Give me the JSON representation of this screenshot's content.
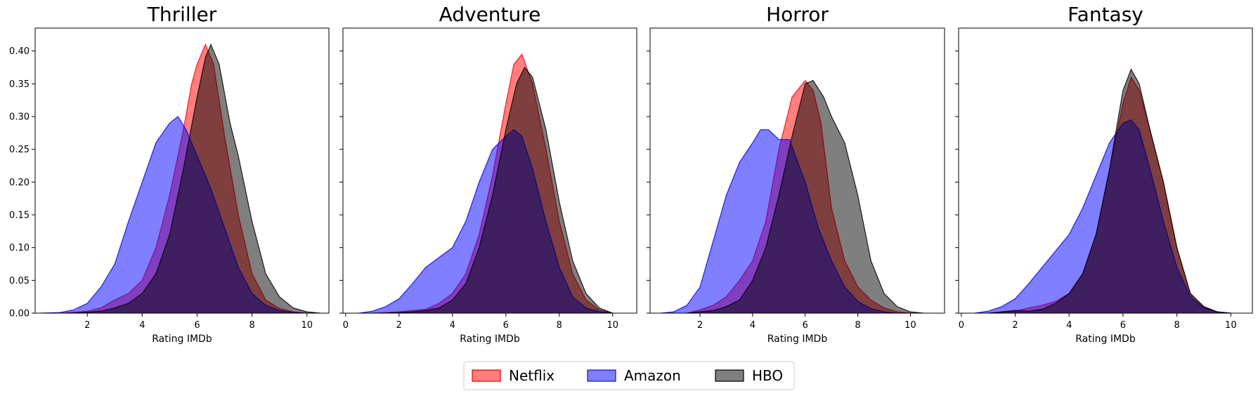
{
  "chart_data": [
    {
      "type": "area",
      "title": "Thriller",
      "xlabel": "Rating IMDb",
      "ylabel": "",
      "xlim": [
        0.1,
        10.8
      ],
      "ylim": [
        0,
        0.435
      ],
      "xticks": [
        2,
        4,
        6,
        8,
        10
      ],
      "yticks": [
        "0.00",
        "0.05",
        "0.10",
        "0.15",
        "0.20",
        "0.25",
        "0.30",
        "0.35",
        "0.40"
      ],
      "show_yticklabels": true,
      "series": [
        {
          "name": "Amazon",
          "x": [
            0.3,
            1.0,
            1.5,
            2.0,
            2.5,
            3.0,
            3.5,
            4.0,
            4.5,
            5.0,
            5.3,
            5.6,
            6.0,
            6.5,
            7.0,
            7.5,
            8.0,
            8.5,
            9.0,
            9.5,
            10.0
          ],
          "y": [
            0.0,
            0.001,
            0.005,
            0.015,
            0.04,
            0.075,
            0.14,
            0.2,
            0.26,
            0.29,
            0.3,
            0.28,
            0.24,
            0.19,
            0.13,
            0.07,
            0.03,
            0.012,
            0.004,
            0.001,
            0.0
          ]
        },
        {
          "name": "Netflix",
          "x": [
            1.0,
            2.0,
            2.5,
            3.0,
            3.5,
            4.0,
            4.5,
            5.0,
            5.5,
            5.8,
            6.0,
            6.3,
            6.6,
            7.0,
            7.5,
            8.0,
            8.5,
            9.0,
            9.5,
            10.0
          ],
          "y": [
            0.0,
            0.003,
            0.008,
            0.02,
            0.03,
            0.05,
            0.1,
            0.18,
            0.28,
            0.35,
            0.38,
            0.41,
            0.38,
            0.27,
            0.15,
            0.06,
            0.02,
            0.007,
            0.002,
            0.0
          ]
        },
        {
          "name": "HBO",
          "x": [
            1.5,
            2.5,
            3.0,
            3.5,
            4.0,
            4.5,
            5.0,
            5.5,
            6.0,
            6.3,
            6.5,
            6.8,
            7.2,
            7.5,
            8.0,
            8.5,
            9.0,
            9.5,
            10.0,
            10.5
          ],
          "y": [
            0.0,
            0.003,
            0.008,
            0.015,
            0.03,
            0.06,
            0.12,
            0.22,
            0.33,
            0.39,
            0.41,
            0.38,
            0.29,
            0.24,
            0.14,
            0.06,
            0.025,
            0.008,
            0.002,
            0.0
          ]
        }
      ]
    },
    {
      "type": "area",
      "title": "Adventure",
      "xlabel": "Rating IMDb",
      "ylabel": "",
      "xlim": [
        -0.1,
        10.9
      ],
      "ylim": [
        0,
        0.435
      ],
      "xticks": [
        0,
        2,
        4,
        6,
        8,
        10
      ],
      "yticks": [
        "0.00",
        "0.05",
        "0.10",
        "0.15",
        "0.20",
        "0.25",
        "0.30",
        "0.35",
        "0.40"
      ],
      "show_yticklabels": false,
      "series": [
        {
          "name": "Amazon",
          "x": [
            0.5,
            1.0,
            1.5,
            2.0,
            2.5,
            3.0,
            3.5,
            4.0,
            4.5,
            5.0,
            5.5,
            6.0,
            6.3,
            6.6,
            7.0,
            7.5,
            8.0,
            8.5,
            9.0,
            9.5,
            10.0
          ],
          "y": [
            0.0,
            0.003,
            0.01,
            0.022,
            0.045,
            0.07,
            0.085,
            0.1,
            0.14,
            0.2,
            0.25,
            0.27,
            0.28,
            0.27,
            0.22,
            0.14,
            0.07,
            0.025,
            0.008,
            0.002,
            0.0
          ]
        },
        {
          "name": "Netflix",
          "x": [
            1.0,
            2.0,
            2.5,
            3.0,
            3.5,
            4.0,
            4.5,
            5.0,
            5.5,
            6.0,
            6.3,
            6.6,
            7.0,
            7.5,
            8.0,
            8.5,
            9.0,
            9.5,
            10.0
          ],
          "y": [
            0.0,
            0.002,
            0.004,
            0.006,
            0.015,
            0.03,
            0.06,
            0.12,
            0.21,
            0.32,
            0.38,
            0.395,
            0.35,
            0.25,
            0.14,
            0.06,
            0.02,
            0.005,
            0.0
          ]
        },
        {
          "name": "HBO",
          "x": [
            1.5,
            2.5,
            3.0,
            3.5,
            4.0,
            4.5,
            5.0,
            5.5,
            6.0,
            6.4,
            6.7,
            7.0,
            7.5,
            8.0,
            8.5,
            9.0,
            9.5,
            10.0
          ],
          "y": [
            0.0,
            0.002,
            0.004,
            0.008,
            0.02,
            0.045,
            0.1,
            0.18,
            0.28,
            0.35,
            0.375,
            0.36,
            0.28,
            0.17,
            0.08,
            0.03,
            0.008,
            0.0
          ]
        }
      ]
    },
    {
      "type": "area",
      "title": "Horror",
      "xlabel": "Rating IMDb",
      "ylabel": "",
      "xlim": [
        0.1,
        11.3
      ],
      "ylim": [
        0,
        0.435
      ],
      "xticks": [
        2,
        4,
        6,
        8,
        10
      ],
      "yticks": [
        "0.00",
        "0.05",
        "0.10",
        "0.15",
        "0.20",
        "0.25",
        "0.30",
        "0.35",
        "0.40"
      ],
      "show_yticklabels": false,
      "series": [
        {
          "name": "Amazon",
          "x": [
            0.5,
            1.0,
            1.5,
            2.0,
            2.5,
            3.0,
            3.5,
            4.0,
            4.3,
            4.6,
            5.0,
            5.4,
            6.0,
            6.5,
            7.0,
            7.5,
            8.0,
            8.5,
            9.0,
            9.5,
            10.0
          ],
          "y": [
            0.0,
            0.002,
            0.012,
            0.04,
            0.11,
            0.18,
            0.23,
            0.26,
            0.28,
            0.28,
            0.265,
            0.265,
            0.2,
            0.13,
            0.08,
            0.04,
            0.018,
            0.007,
            0.002,
            0.0,
            0.0
          ]
        },
        {
          "name": "Netflix",
          "x": [
            1.5,
            2.0,
            2.5,
            3.0,
            3.5,
            4.0,
            4.5,
            5.0,
            5.5,
            6.0,
            6.3,
            6.6,
            7.0,
            7.5,
            8.0,
            8.5,
            9.0,
            9.5,
            10.0
          ],
          "y": [
            0.0,
            0.005,
            0.012,
            0.025,
            0.05,
            0.08,
            0.14,
            0.25,
            0.33,
            0.355,
            0.34,
            0.29,
            0.16,
            0.08,
            0.04,
            0.02,
            0.008,
            0.002,
            0.0
          ]
        },
        {
          "name": "HBO",
          "x": [
            1.5,
            2.5,
            3.0,
            3.5,
            4.0,
            4.5,
            5.0,
            5.5,
            6.0,
            6.3,
            6.7,
            7.0,
            7.5,
            8.0,
            8.5,
            9.0,
            9.5,
            10.0,
            10.5
          ],
          "y": [
            0.0,
            0.004,
            0.01,
            0.02,
            0.05,
            0.1,
            0.18,
            0.27,
            0.35,
            0.355,
            0.33,
            0.3,
            0.26,
            0.18,
            0.08,
            0.03,
            0.01,
            0.002,
            0.0
          ]
        }
      ]
    },
    {
      "type": "area",
      "title": "Fantasy",
      "xlabel": "Rating IMDb",
      "ylabel": "",
      "xlim": [
        -0.1,
        10.8
      ],
      "ylim": [
        0,
        0.435
      ],
      "xticks": [
        0,
        2,
        4,
        6,
        8,
        10
      ],
      "yticks": [
        "0.00",
        "0.05",
        "0.10",
        "0.15",
        "0.20",
        "0.25",
        "0.30",
        "0.35",
        "0.40"
      ],
      "show_yticklabels": false,
      "series": [
        {
          "name": "Amazon",
          "x": [
            0.5,
            1.0,
            1.5,
            2.0,
            2.5,
            3.0,
            3.5,
            4.0,
            4.5,
            5.0,
            5.5,
            6.0,
            6.3,
            6.6,
            7.0,
            7.5,
            8.0,
            8.5,
            9.0,
            9.5,
            10.0
          ],
          "y": [
            0.0,
            0.003,
            0.01,
            0.022,
            0.045,
            0.07,
            0.095,
            0.12,
            0.16,
            0.21,
            0.26,
            0.29,
            0.295,
            0.28,
            0.22,
            0.14,
            0.07,
            0.025,
            0.008,
            0.002,
            0.0
          ]
        },
        {
          "name": "Netflix",
          "x": [
            1.0,
            2.0,
            2.5,
            3.0,
            3.5,
            4.0,
            4.5,
            5.0,
            5.5,
            6.0,
            6.3,
            6.6,
            7.0,
            7.5,
            8.0,
            8.5,
            9.0,
            9.5,
            10.0
          ],
          "y": [
            0.0,
            0.003,
            0.008,
            0.012,
            0.018,
            0.03,
            0.06,
            0.12,
            0.22,
            0.32,
            0.36,
            0.34,
            0.28,
            0.2,
            0.1,
            0.03,
            0.01,
            0.002,
            0.0
          ]
        },
        {
          "name": "HBO",
          "x": [
            1.0,
            2.0,
            2.5,
            3.0,
            3.5,
            4.0,
            4.5,
            5.0,
            5.5,
            6.0,
            6.3,
            6.6,
            7.0,
            7.5,
            8.0,
            8.5,
            9.0,
            9.5,
            10.0
          ],
          "y": [
            0.0,
            0.004,
            0.003,
            0.006,
            0.015,
            0.03,
            0.06,
            0.12,
            0.22,
            0.34,
            0.372,
            0.35,
            0.28,
            0.2,
            0.1,
            0.03,
            0.01,
            0.002,
            0.0
          ]
        }
      ]
    }
  ],
  "legend": {
    "placement": "bottom-center",
    "entries": [
      {
        "label": "Netflix",
        "fill": "#ff0000",
        "edge": "#e60000"
      },
      {
        "label": "Amazon",
        "fill": "#0000ff",
        "edge": "#1010c8"
      },
      {
        "label": "HBO",
        "fill": "#000000",
        "edge": "#000000"
      }
    ]
  },
  "colors": {
    "Netflix": "#ff0000",
    "Amazon": "#0000ff",
    "HBO": "#000000",
    "fill_alpha": 0.5
  }
}
